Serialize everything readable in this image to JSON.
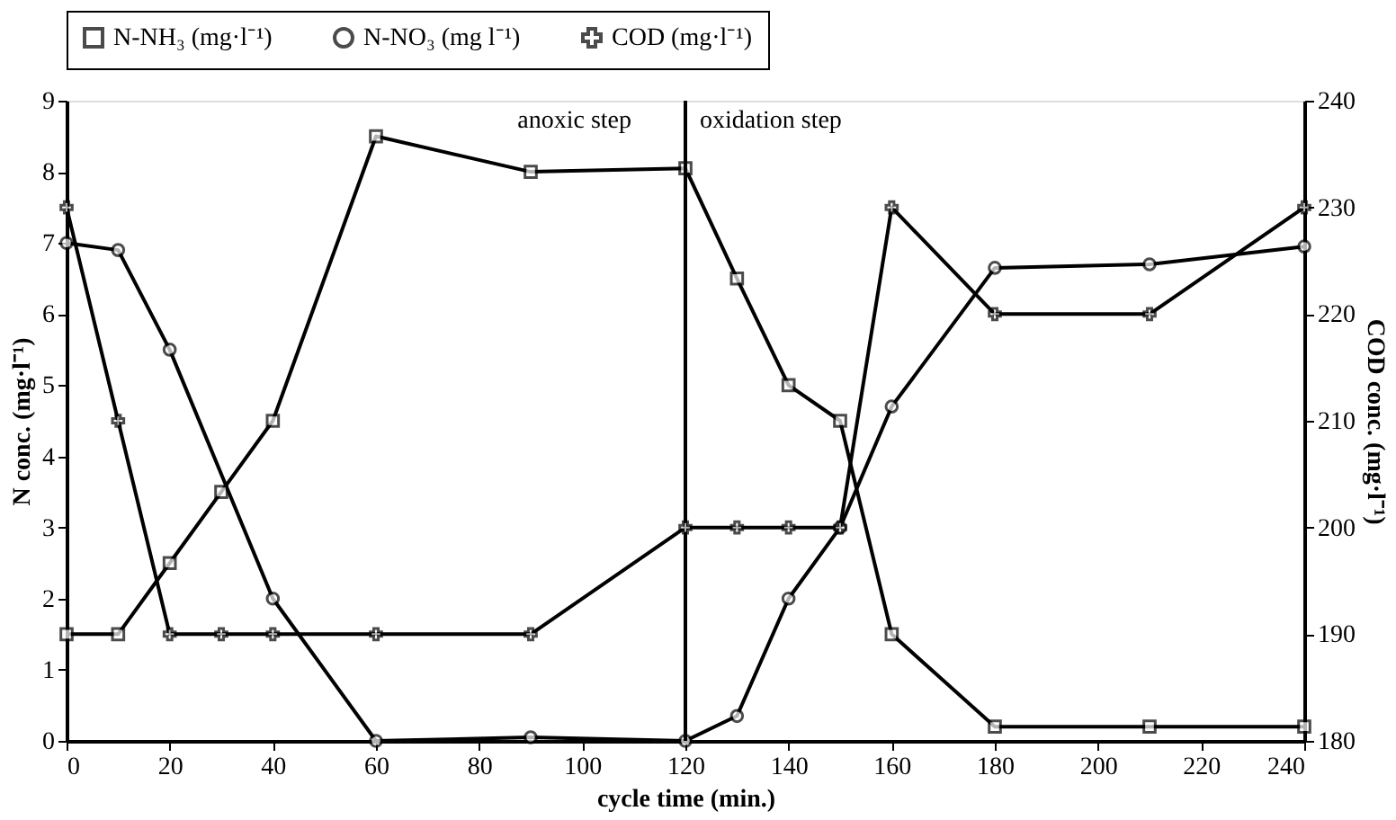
{
  "chart_data": {
    "type": "line",
    "xlabel": "cycle time (min.)",
    "ylabel": "N conc.  (mg·l⁻¹)",
    "y2label": "COD conc. (mg·l⁻¹)",
    "x": [
      0,
      10,
      20,
      30,
      40,
      60,
      90,
      120,
      130,
      140,
      150,
      160,
      180,
      210,
      240
    ],
    "series": [
      {
        "name": "N-NH₃ (mg·l⁻¹)",
        "color": "#000000",
        "marker": "square",
        "values": [
          1.5,
          1.5,
          2.5,
          3.5,
          4.5,
          8.5,
          8.0,
          8.05,
          6.5,
          5.0,
          4.5,
          1.5,
          0.2,
          0.2,
          0.2
        ]
      },
      {
        "name": "N-NO₃ (mg l⁻¹)",
        "color": "#000000",
        "marker": "circle",
        "values": [
          7.0,
          6.9,
          5.5,
          null,
          2.0,
          0.0,
          0.05,
          0.0,
          0.35,
          2.0,
          3.0,
          4.7,
          6.65,
          6.7,
          6.95
        ]
      },
      {
        "name": "COD (mg·l⁻¹)",
        "color": "#000000",
        "marker": "cross",
        "axis": "y2",
        "values": [
          230,
          210,
          190,
          190,
          190,
          190,
          190,
          200,
          200,
          200,
          200,
          230,
          220,
          220,
          230
        ]
      }
    ],
    "xlim": [
      0,
      240
    ],
    "xticks": [
      0,
      20,
      40,
      60,
      80,
      100,
      120,
      140,
      160,
      180,
      200,
      220,
      240
    ],
    "ylim": [
      0,
      9
    ],
    "yticks": [
      0,
      1,
      2,
      3,
      4,
      5,
      6,
      7,
      8,
      9
    ],
    "y2lim": [
      180,
      240
    ],
    "y2ticks": [
      180,
      190,
      200,
      210,
      220,
      230,
      240
    ],
    "ref_lines": [
      {
        "axis": "x",
        "value": 120
      }
    ],
    "annotations": [
      "anoxic step",
      "oxidation step"
    ],
    "legend": "top",
    "grid": false,
    "line_style": "solid"
  }
}
